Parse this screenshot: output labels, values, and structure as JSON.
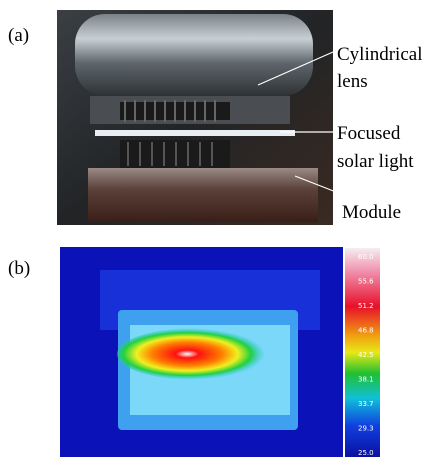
{
  "panel_a": {
    "label": "(a)",
    "annotations": [
      {
        "lines": [
          "Cylindrical",
          "lens"
        ]
      },
      {
        "lines": [
          "Focused",
          "solar light"
        ]
      },
      {
        "lines": [
          "Module"
        ]
      }
    ]
  },
  "panel_b": {
    "label": "(b)",
    "colorbar_labels": [
      "60.0",
      "55.6",
      "51.2",
      "46.8",
      "42.5",
      "38.1",
      "33.7",
      "29.3",
      "25.0"
    ]
  }
}
